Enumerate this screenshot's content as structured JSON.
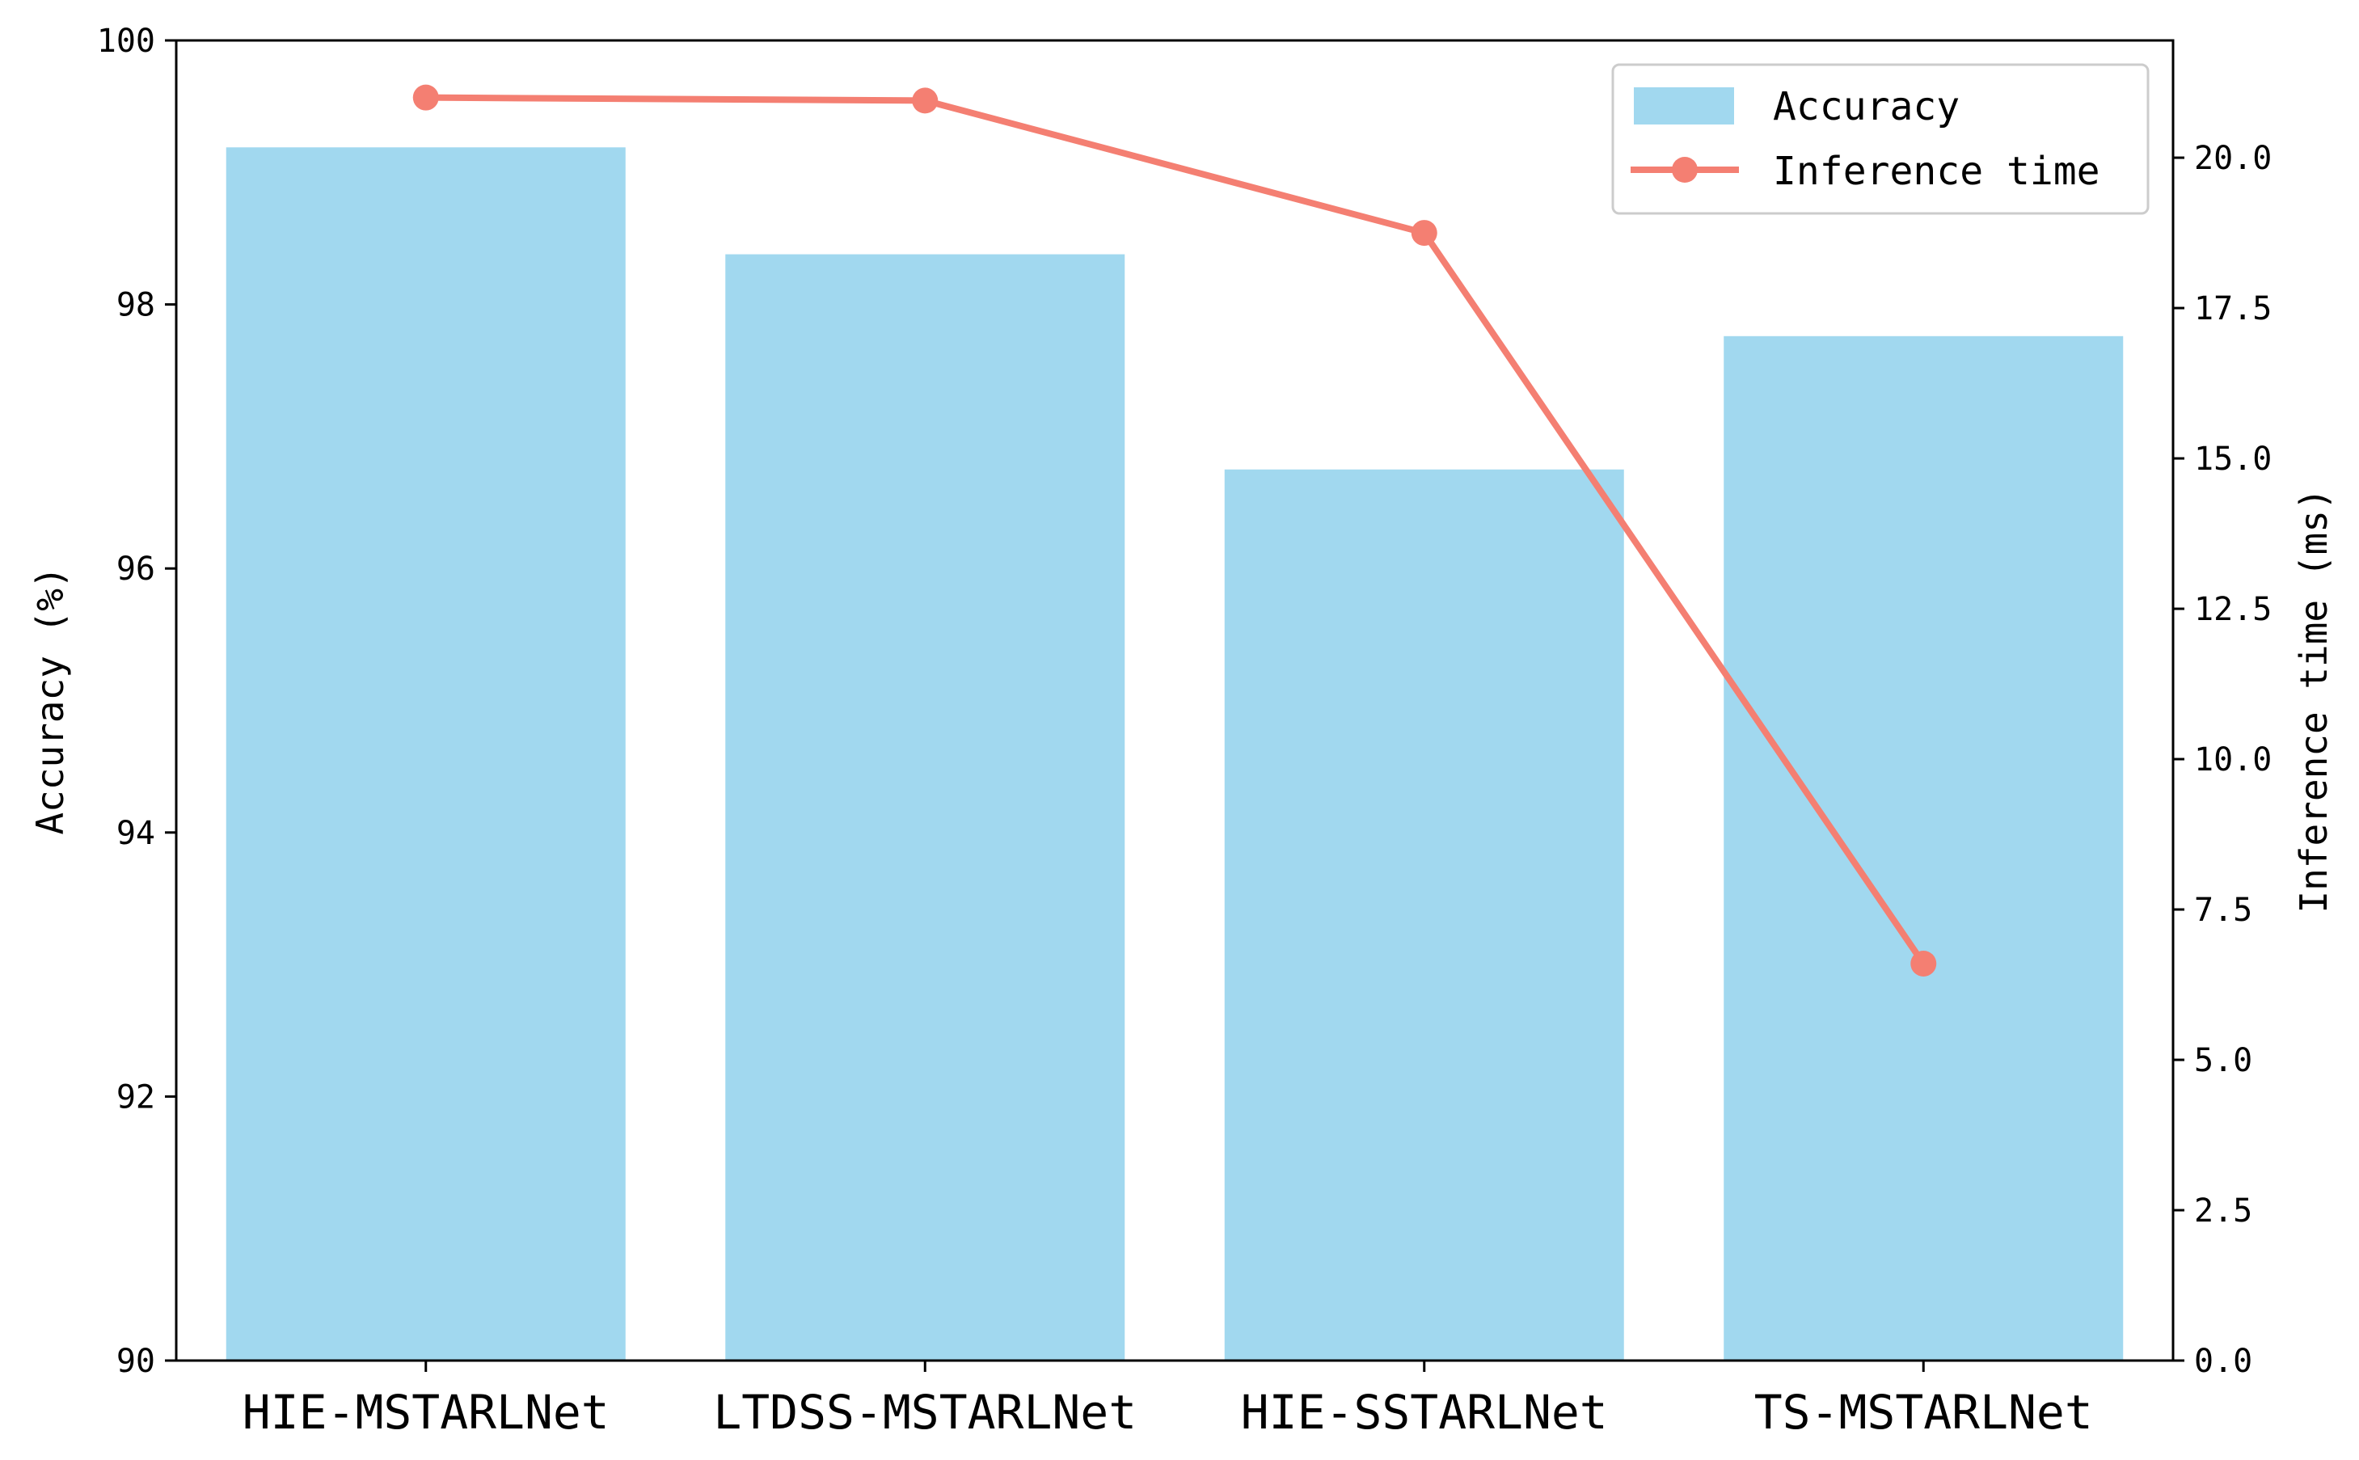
{
  "chart_data": {
    "type": "bar",
    "categories": [
      "HIE-MSTARLNet",
      "LTDSS-MSTARLNet",
      "HIE-SSTARLNet",
      "TS-MSTARLNet"
    ],
    "series": [
      {
        "name": "Accuracy",
        "type": "bar",
        "axis": "left",
        "values": [
          99.19,
          98.38,
          96.75,
          97.76
        ],
        "color": "#a1d8ef"
      },
      {
        "name": "Inference time",
        "type": "line",
        "axis": "right",
        "values": [
          21.0,
          20.95,
          18.75,
          6.6
        ],
        "color": "#f47f72"
      }
    ],
    "ylabel": "Accuracy (%)",
    "ylabel_right": "Inference time (ms)",
    "ylim": [
      90,
      100
    ],
    "ylim_right": [
      0,
      21.95
    ],
    "yticks": [
      90,
      92,
      94,
      96,
      98,
      100
    ],
    "yticks_right": [
      "0.0",
      "2.5",
      "5.0",
      "7.5",
      "10.0",
      "12.5",
      "15.0",
      "17.5",
      "20.0"
    ],
    "legend": "top-right",
    "grid": false
  }
}
